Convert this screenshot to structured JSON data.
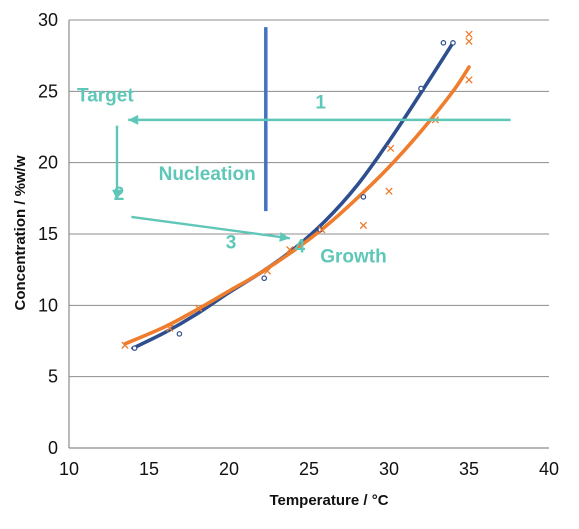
{
  "chart_data": {
    "type": "scatter",
    "xlabel": "Temperature / °C",
    "ylabel": "Concentration / %w/w",
    "xlim": [
      10,
      40
    ],
    "ylim": [
      0,
      30
    ],
    "x_ticks": [
      10,
      15,
      20,
      25,
      30,
      35,
      40
    ],
    "y_ticks": [
      0,
      5,
      10,
      15,
      20,
      25,
      30
    ],
    "grid": "horizontal",
    "legend": "none",
    "colors": {
      "blue": "#2e4f8f",
      "orange": "#ef7d2e",
      "annotation": "#5fc7b8",
      "marker_line": "#4472c4"
    },
    "series": [
      {
        "marker": "circle",
        "color": "#2e4f8f",
        "points": [
          {
            "x": 14.1,
            "y": 7.0
          },
          {
            "x": 16.9,
            "y": 8.0
          },
          {
            "x": 22.2,
            "y": 11.9
          },
          {
            "x": 25.7,
            "y": 15.3
          },
          {
            "x": 28.4,
            "y": 17.6
          },
          {
            "x": 32.0,
            "y": 25.2
          },
          {
            "x": 33.4,
            "y": 28.4
          },
          {
            "x": 34.0,
            "y": 28.4
          }
        ],
        "trend": [
          {
            "x": 14.0,
            "y": 7.0
          },
          {
            "x": 16.0,
            "y": 8.1
          },
          {
            "x": 18.0,
            "y": 9.4
          },
          {
            "x": 20.0,
            "y": 10.9
          },
          {
            "x": 22.0,
            "y": 12.3
          },
          {
            "x": 24.0,
            "y": 13.9
          },
          {
            "x": 26.0,
            "y": 15.9
          },
          {
            "x": 28.0,
            "y": 18.4
          },
          {
            "x": 30.0,
            "y": 21.5
          },
          {
            "x": 32.0,
            "y": 24.9
          },
          {
            "x": 34.0,
            "y": 28.4
          }
        ]
      },
      {
        "marker": "x",
        "color": "#ef7d2e",
        "points": [
          {
            "x": 13.5,
            "y": 7.2
          },
          {
            "x": 16.3,
            "y": 8.4
          },
          {
            "x": 18.1,
            "y": 9.8
          },
          {
            "x": 22.4,
            "y": 12.4
          },
          {
            "x": 23.8,
            "y": 13.9
          },
          {
            "x": 25.8,
            "y": 15.3
          },
          {
            "x": 28.4,
            "y": 15.6
          },
          {
            "x": 30.0,
            "y": 18.0
          },
          {
            "x": 30.1,
            "y": 21.0
          },
          {
            "x": 32.9,
            "y": 23.0
          },
          {
            "x": 35.0,
            "y": 25.8
          },
          {
            "x": 35.0,
            "y": 28.5
          },
          {
            "x": 35.0,
            "y": 29.0
          }
        ],
        "trend": [
          {
            "x": 13.5,
            "y": 7.3
          },
          {
            "x": 16.0,
            "y": 8.5
          },
          {
            "x": 18.0,
            "y": 9.7
          },
          {
            "x": 20.0,
            "y": 11.0
          },
          {
            "x": 22.0,
            "y": 12.3
          },
          {
            "x": 24.0,
            "y": 13.8
          },
          {
            "x": 26.0,
            "y": 15.5
          },
          {
            "x": 28.0,
            "y": 17.5
          },
          {
            "x": 30.0,
            "y": 19.7
          },
          {
            "x": 32.0,
            "y": 22.2
          },
          {
            "x": 34.0,
            "y": 25.0
          },
          {
            "x": 35.0,
            "y": 26.7
          }
        ]
      }
    ],
    "markers": [
      {
        "type": "vertical-line",
        "x": 22.3,
        "y_from": 16.6,
        "y_to": 29.5
      }
    ],
    "annotations": [
      {
        "label": "Target",
        "x": 10.5,
        "y": 24.3
      },
      {
        "label": "1",
        "x": 25.4,
        "y": 23.8
      },
      {
        "label": "Nucleation",
        "x": 15.6,
        "y": 18.8
      },
      {
        "label": "2",
        "x": 12.8,
        "y": 17.4
      },
      {
        "label": "3",
        "x": 19.8,
        "y": 14.0
      },
      {
        "label": "4",
        "x": 24.1,
        "y": 13.7
      },
      {
        "label": "Growth",
        "x": 25.7,
        "y": 13.0
      }
    ],
    "arrows": [
      {
        "from": {
          "x": 37.6,
          "y": 23.0
        },
        "to": {
          "x": 13.7,
          "y": 23.0
        }
      },
      {
        "from": {
          "x": 13.0,
          "y": 22.6
        },
        "to": {
          "x": 13.0,
          "y": 17.4
        }
      },
      {
        "from": {
          "x": 13.9,
          "y": 16.2
        },
        "to": {
          "x": 23.8,
          "y": 14.7
        }
      }
    ]
  }
}
